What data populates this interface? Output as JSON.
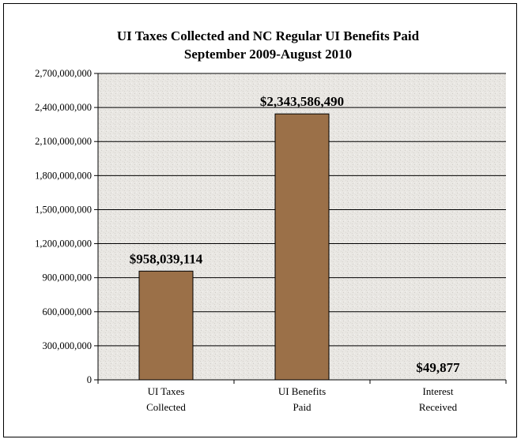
{
  "chart_data": {
    "type": "bar",
    "title": "UI Taxes Collected and NC Regular UI Benefits Paid",
    "subtitle": "September 2009-August 2010",
    "categories": [
      [
        "UI Taxes",
        "Collected"
      ],
      [
        "UI Benefits",
        "Paid"
      ],
      [
        "Interest",
        "Received"
      ]
    ],
    "values": [
      958039114,
      2343586490,
      49877
    ],
    "data_labels": [
      "$958,039,114",
      "$2,343,586,490",
      "$49,877"
    ],
    "ylim": [
      0,
      2700000000
    ],
    "yticks": [
      0,
      300000000,
      600000000,
      900000000,
      1200000000,
      1500000000,
      1800000000,
      2100000000,
      2400000000,
      2700000000
    ],
    "ytick_labels": [
      "0",
      "300,000,000",
      "600,000,000",
      "900,000,000",
      "1,200,000,000",
      "1,500,000,000",
      "1,800,000,000",
      "2,100,000,000",
      "2,400,000,000",
      "2,700,000,000"
    ],
    "grid": true,
    "legend": "none",
    "colors": {
      "bar": "#9b7048",
      "plot_bg": "#e7e5e1",
      "grid": "#000000"
    }
  }
}
